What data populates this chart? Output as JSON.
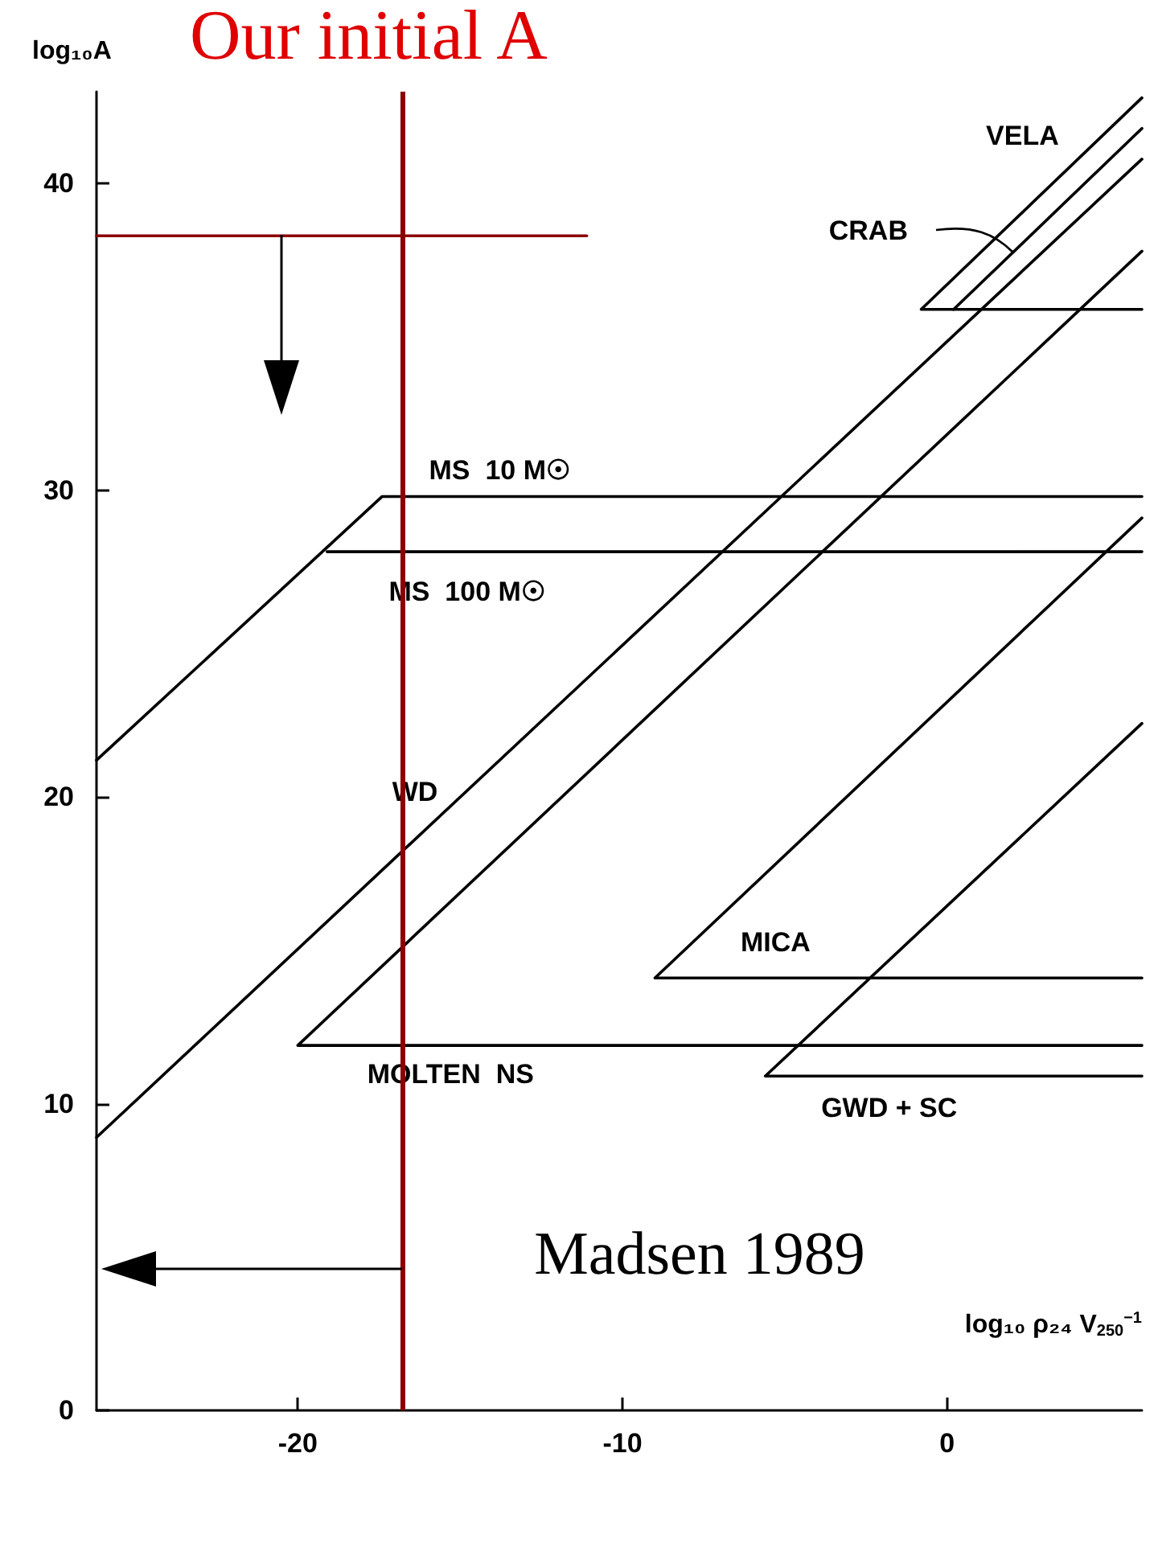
{
  "chart_data": {
    "type": "line",
    "title": "Our initial A",
    "xlabel": "log₁₀ ρ₂₄ V$_{250}$$^{−1}$",
    "ylabel": "log₁₀A",
    "xlim": [
      -26.2,
      6
    ],
    "ylim": [
      0,
      43
    ],
    "xticks": [
      -20,
      -10,
      0
    ],
    "yticks": [
      0,
      10,
      20,
      30,
      40
    ],
    "grid": false,
    "marker": "none",
    "line_style": "solid",
    "series": [
      {
        "name": "MS  10 M☉",
        "color": "#000000",
        "x": [
          -26.2,
          -17.4,
          6
        ],
        "values": [
          21.2,
          29.8,
          29.8
        ]
      },
      {
        "name": "MS  100 M☉",
        "color": "#000000",
        "x": [
          -19.1,
          6
        ],
        "values": [
          28.0,
          28.0
        ]
      },
      {
        "name": "WD",
        "color": "#000000",
        "x": [
          -26.2,
          6
        ],
        "values": [
          8.9,
          40.8
        ]
      },
      {
        "name": "MOLTEN  NS",
        "color": "#000000",
        "x": [
          6,
          -20,
          6
        ],
        "values": [
          11.9,
          11.9,
          37.8
        ]
      },
      {
        "name": "MICA",
        "color": "#000000",
        "x": [
          6,
          -9,
          6
        ],
        "values": [
          14.1,
          14.1,
          29.1
        ]
      },
      {
        "name": "GWD + SC",
        "color": "#000000",
        "x": [
          6,
          -5.6,
          6
        ],
        "values": [
          10.9,
          10.9,
          22.4
        ]
      },
      {
        "name": "VELA",
        "color": "#000000",
        "x": [
          6,
          -0.8,
          6
        ],
        "values": [
          35.9,
          35.9,
          42.8
        ]
      },
      {
        "name": "CRAB",
        "color": "#000000",
        "x": [
          0.2,
          6
        ],
        "values": [
          35.9,
          41.8
        ]
      },
      {
        "color": "#8b0000",
        "x": [
          -26.2,
          -11.1
        ],
        "values": [
          38.3,
          38.3
        ]
      }
    ],
    "ref_lines": [
      {
        "axis": "x",
        "value": -16.8,
        "color": "#8b0000"
      }
    ],
    "annotations": [
      "Madsen 1989"
    ]
  }
}
